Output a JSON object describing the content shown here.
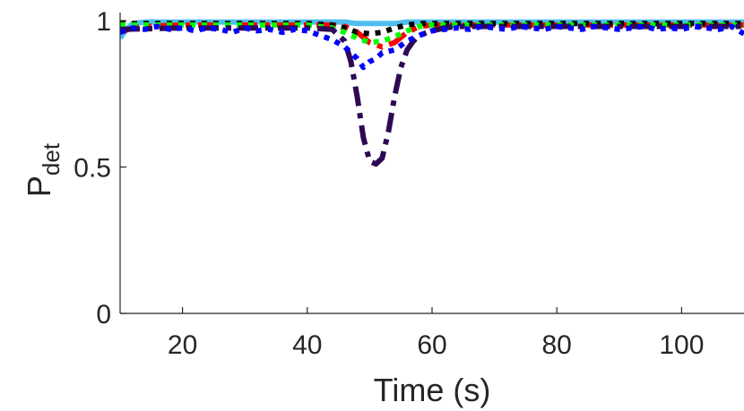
{
  "chart_data": {
    "type": "line",
    "title": "",
    "xlabel": "Time (s)",
    "ylabel": {
      "main": "P",
      "subscript": "det"
    },
    "xlim": [
      10,
      110
    ],
    "ylim": [
      0,
      1
    ],
    "xticks": [
      20,
      40,
      60,
      80,
      100
    ],
    "yticks": [
      0,
      0.5,
      1
    ],
    "grid": false,
    "legend": "none",
    "series": [
      {
        "color": "#4DBEEE",
        "style": "solid",
        "width": 6,
        "x": [
          10,
          11,
          12,
          14,
          20,
          30,
          40,
          46,
          48,
          50,
          52,
          54,
          56,
          60,
          70,
          80,
          90,
          100,
          110
        ],
        "y": [
          0.94,
          0.97,
          0.99,
          0.995,
          0.995,
          0.995,
          0.995,
          0.995,
          0.99,
          0.99,
          0.99,
          0.99,
          0.995,
          0.995,
          0.995,
          0.995,
          0.995,
          0.995,
          0.995
        ]
      },
      {
        "color": "#FF0000",
        "style": "dashdot",
        "width": 6,
        "x": [
          10,
          12,
          14,
          20,
          30,
          40,
          44,
          46,
          48,
          50,
          52,
          54,
          56,
          58,
          60,
          70,
          80,
          90,
          100,
          110
        ],
        "y": [
          0.96,
          0.975,
          0.98,
          0.985,
          0.985,
          0.985,
          0.985,
          0.98,
          0.96,
          0.925,
          0.91,
          0.925,
          0.96,
          0.98,
          0.985,
          0.985,
          0.985,
          0.985,
          0.985,
          0.985
        ]
      },
      {
        "color": "#000000",
        "style": "dotted",
        "width": 6,
        "x": [
          10,
          20,
          30,
          40,
          44,
          46,
          48,
          50,
          52,
          54,
          56,
          58,
          60,
          70,
          80,
          90,
          100,
          110
        ],
        "y": [
          0.99,
          0.99,
          0.99,
          0.99,
          0.985,
          0.975,
          0.96,
          0.955,
          0.96,
          0.975,
          0.985,
          0.99,
          0.99,
          0.99,
          0.99,
          0.99,
          0.99,
          0.99
        ]
      },
      {
        "color": "#00FF00",
        "style": "dotted",
        "width": 6,
        "x": [
          10,
          20,
          30,
          40,
          44,
          46,
          48,
          50,
          52,
          54,
          56,
          58,
          60,
          70,
          80,
          90,
          100,
          110
        ],
        "y": [
          0.985,
          0.985,
          0.985,
          0.985,
          0.975,
          0.96,
          0.94,
          0.925,
          0.93,
          0.945,
          0.965,
          0.98,
          0.985,
          0.985,
          0.985,
          0.985,
          0.985,
          0.985
        ]
      },
      {
        "color": "#2E0854",
        "style": "dashdot",
        "width": 6,
        "x": [
          10,
          20,
          30,
          40,
          44,
          46,
          47,
          48,
          49,
          50,
          51,
          52,
          53,
          54,
          55,
          56,
          57,
          58,
          60,
          62,
          64,
          70,
          80,
          90,
          100,
          110
        ],
        "y": [
          0.97,
          0.975,
          0.975,
          0.975,
          0.97,
          0.93,
          0.86,
          0.74,
          0.6,
          0.52,
          0.51,
          0.53,
          0.62,
          0.74,
          0.84,
          0.9,
          0.93,
          0.95,
          0.965,
          0.975,
          0.98,
          0.98,
          0.98,
          0.98,
          0.98,
          0.98
        ]
      },
      {
        "color": "#0000FF",
        "style": "dotted",
        "width": 6,
        "x": [
          10,
          12,
          14,
          16,
          18,
          20,
          22,
          24,
          26,
          28,
          30,
          32,
          34,
          36,
          38,
          40,
          42,
          44,
          46,
          48,
          49,
          50,
          51,
          52,
          54,
          56,
          58,
          60,
          62,
          64,
          66,
          68,
          70,
          72,
          74,
          76,
          78,
          80,
          82,
          84,
          86,
          88,
          90,
          92,
          94,
          96,
          98,
          100,
          102,
          104,
          106,
          108,
          110
        ],
        "y": [
          0.96,
          0.975,
          0.97,
          0.98,
          0.97,
          0.975,
          0.965,
          0.975,
          0.97,
          0.96,
          0.975,
          0.965,
          0.97,
          0.96,
          0.97,
          0.965,
          0.95,
          0.935,
          0.91,
          0.87,
          0.84,
          0.86,
          0.87,
          0.89,
          0.9,
          0.93,
          0.95,
          0.965,
          0.97,
          0.975,
          0.97,
          0.98,
          0.975,
          0.97,
          0.98,
          0.975,
          0.97,
          0.98,
          0.975,
          0.97,
          0.98,
          0.975,
          0.97,
          0.975,
          0.98,
          0.97,
          0.975,
          0.97,
          0.98,
          0.975,
          0.97,
          0.98,
          0.955
        ]
      }
    ]
  }
}
